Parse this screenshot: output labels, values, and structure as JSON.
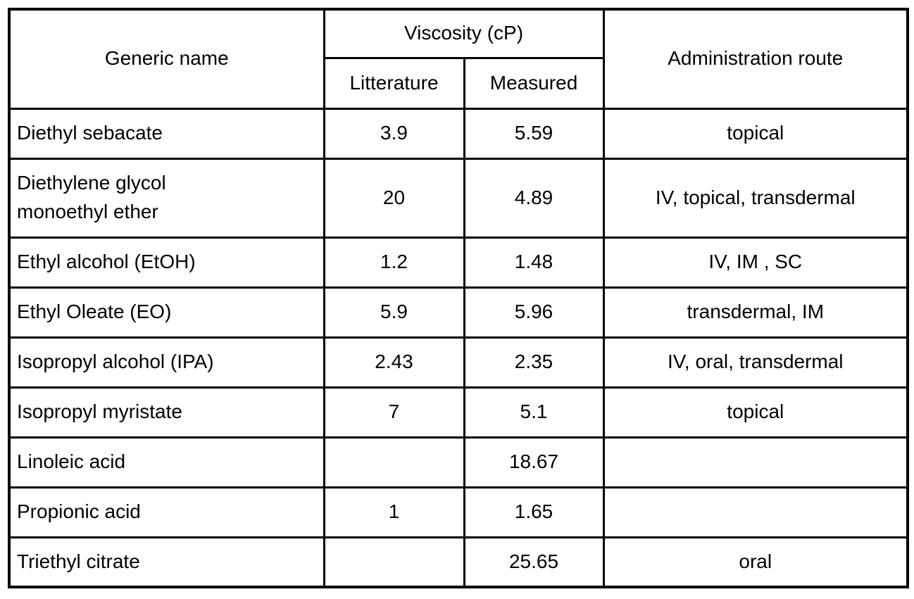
{
  "table": {
    "header": {
      "generic_name": "Generic name",
      "viscosity_group": "Viscosity (cP)",
      "litterature": "Litterature",
      "measured": "Measured",
      "administration_route": "Administration route"
    },
    "rows": [
      {
        "name": "Diethyl sebacate",
        "litterature": "3.9",
        "measured": "5.59",
        "route": "topical"
      },
      {
        "name": "Diethylene glycol\nmonoethyl ether",
        "litterature": "20",
        "measured": "4.89",
        "route": "IV, topical, transdermal"
      },
      {
        "name": "Ethyl alcohol (EtOH)",
        "litterature": "1.2",
        "measured": "1.48",
        "route": "IV, IM , SC"
      },
      {
        "name": "Ethyl Oleate (EO)",
        "litterature": "5.9",
        "measured": "5.96",
        "route": "transdermal, IM"
      },
      {
        "name": "Isopropyl alcohol (IPA)",
        "litterature": "2.43",
        "measured": "2.35",
        "route": "IV, oral, transdermal"
      },
      {
        "name": "Isopropyl myristate",
        "litterature": "7",
        "measured": "5.1",
        "route": "topical"
      },
      {
        "name": "Linoleic acid",
        "litterature": "",
        "measured": "18.67",
        "route": ""
      },
      {
        "name": "Propionic acid",
        "litterature": "1",
        "measured": "1.65",
        "route": ""
      },
      {
        "name": "Triethyl citrate",
        "litterature": "",
        "measured": "25.65",
        "route": "oral"
      }
    ],
    "colors": {
      "border": "#000000",
      "text": "#000000",
      "background": "#ffffff"
    }
  }
}
